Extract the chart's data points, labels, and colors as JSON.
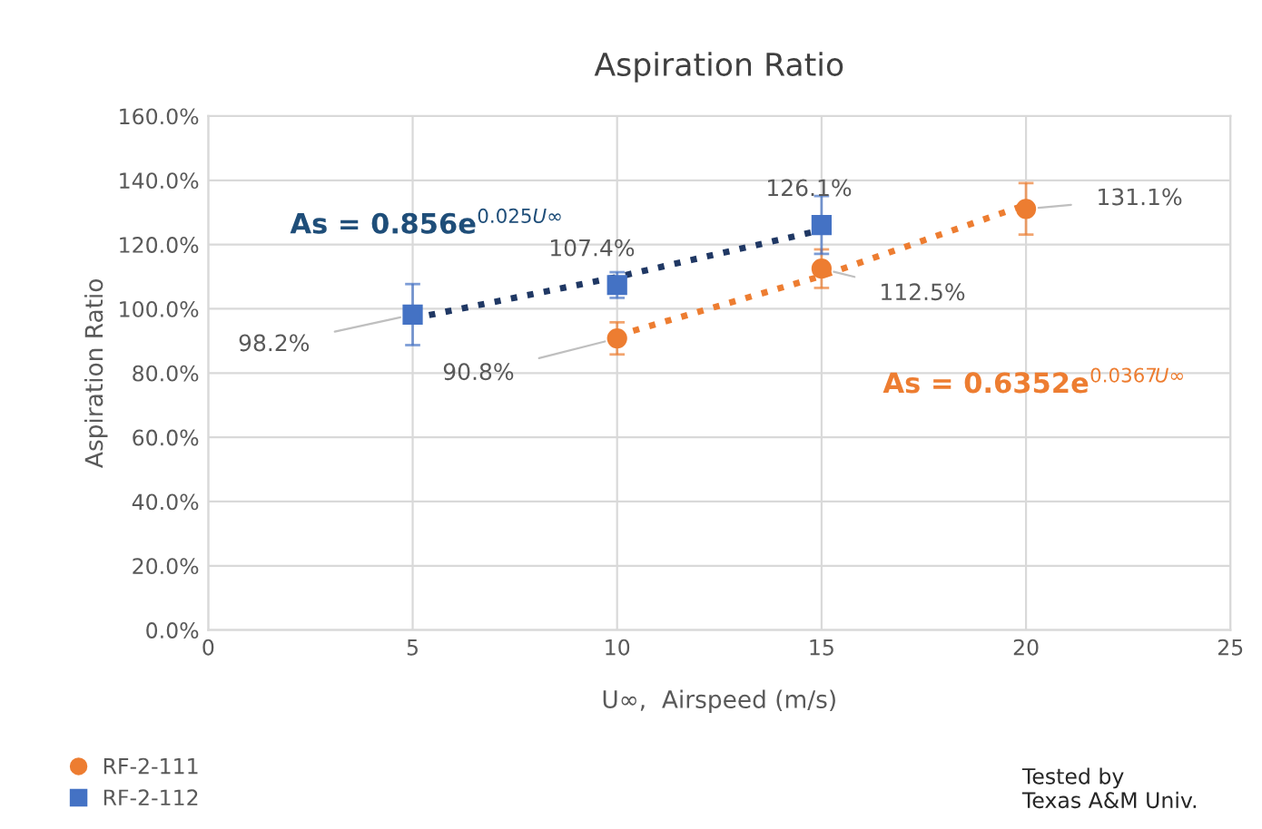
{
  "chart_data": {
    "type": "scatter",
    "title": "Aspiration Ratio",
    "xlabel": "U∞,  Airspeed (m/s)",
    "ylabel": "Aspiration Ratio",
    "xlim": [
      0,
      25
    ],
    "xticks": [
      0,
      5,
      10,
      15,
      20,
      25
    ],
    "ylim": [
      0,
      160
    ],
    "yticks": [
      {
        "value": 0,
        "label": "0.0%"
      },
      {
        "value": 20,
        "label": "20.0%"
      },
      {
        "value": 40,
        "label": "40.0%"
      },
      {
        "value": 60,
        "label": "60.0%"
      },
      {
        "value": 80,
        "label": "80.0%"
      },
      {
        "value": 100,
        "label": "100.0%"
      },
      {
        "value": 120,
        "label": "120.0%"
      },
      {
        "value": 140,
        "label": "140.0%"
      },
      {
        "value": 160,
        "label": "160.0%"
      }
    ],
    "grid": true,
    "legend": "bottom left",
    "series": [
      {
        "name": "RF-2-111",
        "marker": "circle",
        "color": "#ed7d31",
        "x": [
          10,
          15,
          20
        ],
        "values": [
          90.8,
          112.5,
          131.1
        ],
        "errors": [
          5,
          6,
          8
        ],
        "value_labels": [
          "90.8%",
          "112.5%",
          "131.1%"
        ]
      },
      {
        "name": "RF-2-112",
        "marker": "square",
        "color": "#4472c4",
        "x": [
          5,
          10,
          15
        ],
        "values": [
          98.2,
          107.4,
          126.1
        ],
        "errors": [
          9.5,
          4,
          9
        ],
        "value_labels": [
          "98.2%",
          "107.4%",
          "126.1%"
        ]
      },
      {
        "type": "line",
        "line_style": "dotted",
        "marker": "none",
        "color": "#ed7d31",
        "x": [
          10,
          15,
          20
        ],
        "values": [
          91.7,
          110.2,
          132.4
        ]
      },
      {
        "type": "line",
        "line_style": "dotted",
        "marker": "none",
        "color": "#203864",
        "x": [
          5,
          10,
          15
        ],
        "values": [
          97.0,
          109.9,
          124.5
        ]
      }
    ],
    "annotations": [
      "As = 0.856e$^{0.025U∞}$",
      "As = 0.6352e$^{0.0367U∞}$",
      "Tested by\nTexas A&M Univ."
    ]
  }
}
